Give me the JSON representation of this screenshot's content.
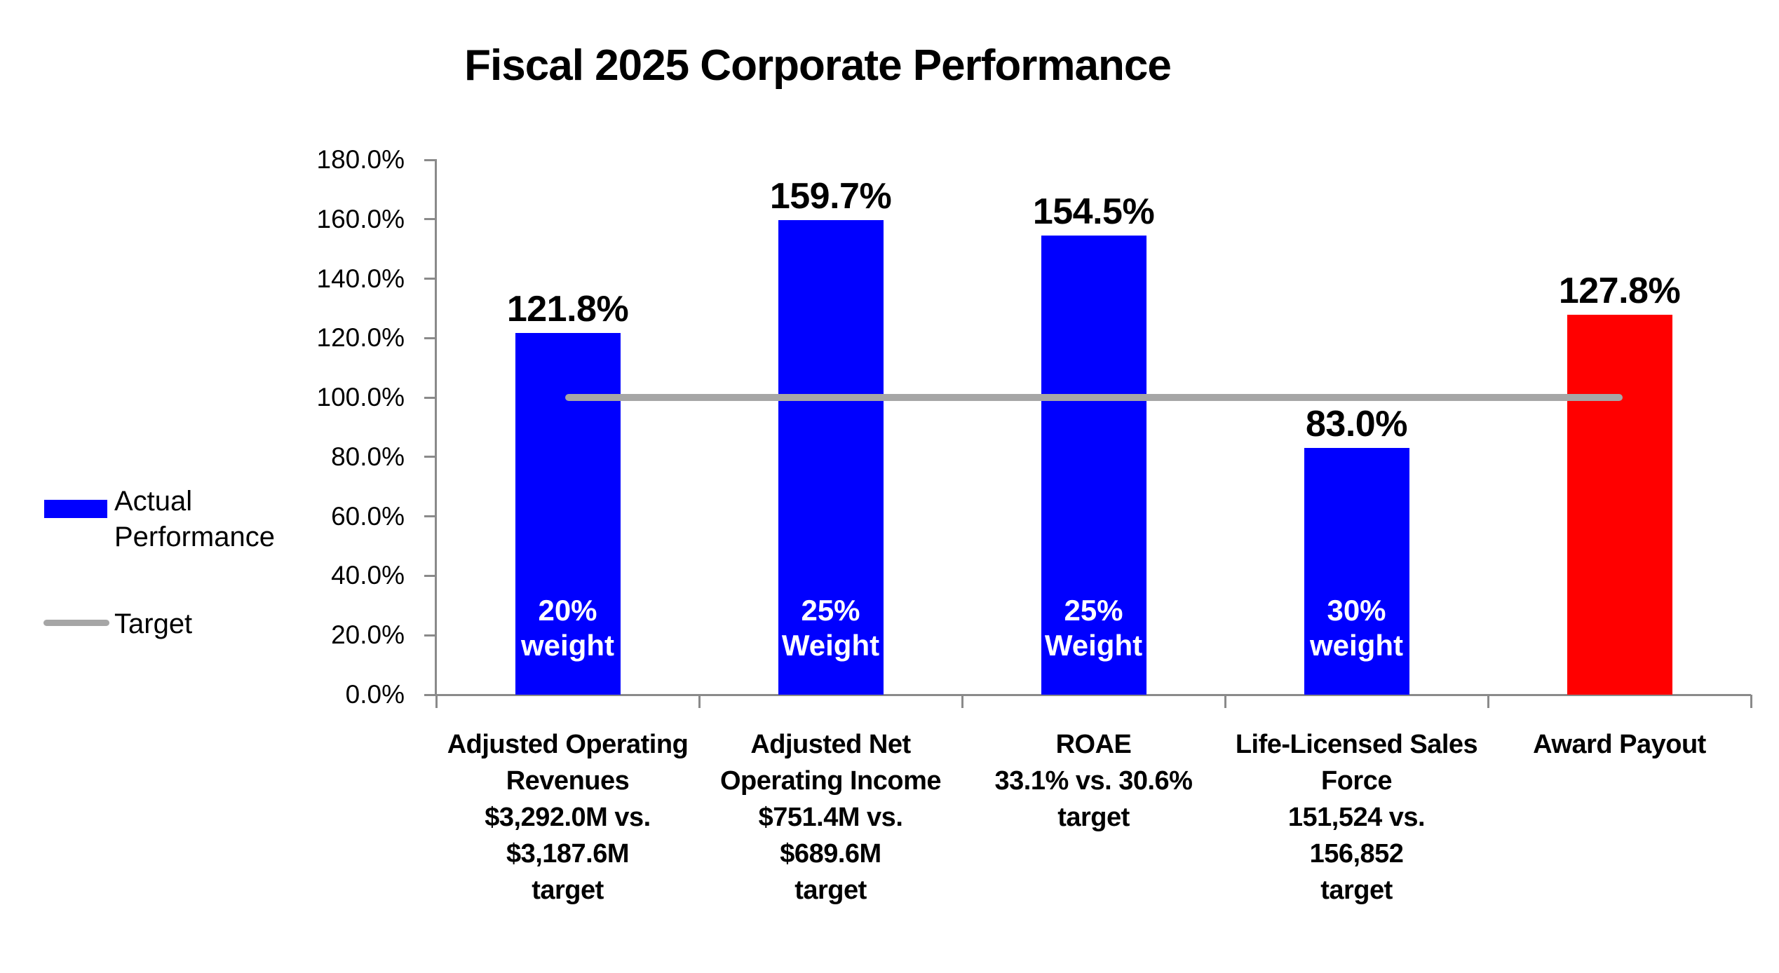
{
  "title": "Fiscal 2025 Corporate Performance",
  "legend": {
    "items": [
      {
        "label": "Actual Performance",
        "swatch": "rect",
        "color": "#0000FF"
      },
      {
        "label": "Target",
        "swatch": "line",
        "color": "#A6A6A6"
      }
    ]
  },
  "chart_data": {
    "type": "bar",
    "title": "Fiscal 2025 Corporate Performance",
    "xlabel": "",
    "ylabel": "",
    "ylim": [
      0,
      180
    ],
    "ytick_step": 20,
    "grid": false,
    "legend_position": "left",
    "colors": {
      "bar_blue": "#0000FF",
      "bar_red": "#FF0000",
      "target_gray": "#A6A6A6",
      "axis_gray": "#8A8A8A",
      "weight_text_white": "#FFFFFF",
      "text_black": "#000000"
    },
    "yticks": [
      {
        "value": 0,
        "label": "0.0%"
      },
      {
        "value": 20,
        "label": "20.0%"
      },
      {
        "value": 40,
        "label": "40.0%"
      },
      {
        "value": 60,
        "label": "60.0%"
      },
      {
        "value": 80,
        "label": "80.0%"
      },
      {
        "value": 100,
        "label": "100.0%"
      },
      {
        "value": 120,
        "label": "120.0%"
      },
      {
        "value": 140,
        "label": "140.0%"
      },
      {
        "value": 160,
        "label": "160.0%"
      },
      {
        "value": 180,
        "label": "180.0%"
      }
    ],
    "values": [
      121.8,
      159.7,
      154.5,
      83.0,
      127.8
    ],
    "categories": [
      {
        "name_lines": [
          "Adjusted Operating",
          "Revenues",
          "$3,292.0M vs.",
          "$3,187.6M",
          "target"
        ],
        "value": 121.8,
        "value_label": "121.8%",
        "weight_lines": [
          "20%",
          "weight"
        ],
        "color": "#0000FF"
      },
      {
        "name_lines": [
          "Adjusted Net",
          "Operating Income",
          "$751.4M vs.",
          "$689.6M",
          "target"
        ],
        "value": 159.7,
        "value_label": "159.7%",
        "weight_lines": [
          "25%",
          "Weight"
        ],
        "color": "#0000FF"
      },
      {
        "name_lines": [
          "ROAE",
          "33.1% vs. 30.6%",
          "target"
        ],
        "value": 154.5,
        "value_label": "154.5%",
        "weight_lines": [
          "25%",
          "Weight"
        ],
        "color": "#0000FF"
      },
      {
        "name_lines": [
          "Life-Licensed Sales",
          "Force",
          "151,524 vs.",
          "156,852",
          "target"
        ],
        "value": 83.0,
        "value_label": "83.0%",
        "weight_lines": [
          "30%",
          "weight"
        ],
        "color": "#0000FF"
      },
      {
        "name_lines": [
          "Award Payout"
        ],
        "value": 127.8,
        "value_label": "127.8%",
        "weight_lines": null,
        "color": "#FF0000"
      }
    ],
    "target_line": {
      "value": 100.0,
      "color": "#A6A6A6",
      "extent": "center of first bar to center of last bar"
    }
  }
}
